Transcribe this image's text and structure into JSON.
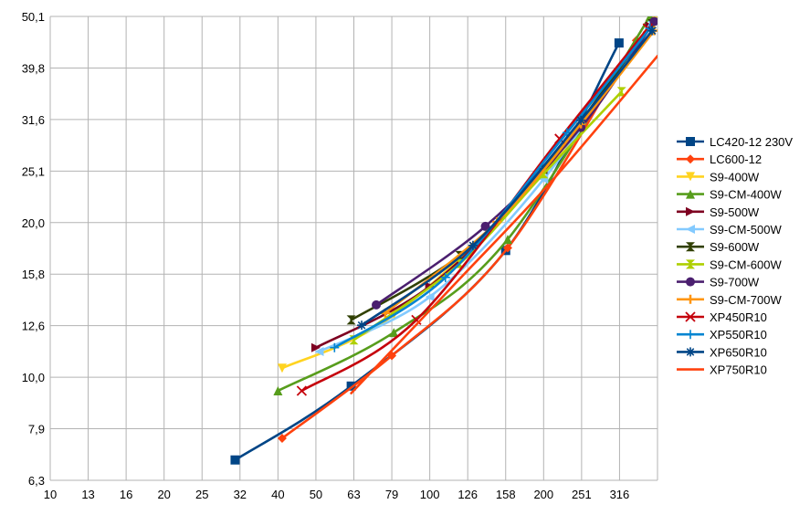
{
  "chart_data": {
    "type": "line",
    "x_scale": "log",
    "y_scale": "log",
    "xlim": [
      10,
      398
    ],
    "ylim": [
      6.3,
      50.1
    ],
    "x_ticks": [
      "10",
      "13",
      "16",
      "20",
      "25",
      "32",
      "40",
      "50",
      "63",
      "79",
      "100",
      "126",
      "158",
      "200",
      "251",
      "316"
    ],
    "y_ticks": [
      "50,1",
      "39,8",
      "31,6",
      "25,1",
      "20,0",
      "15,8",
      "12,6",
      "10,0",
      "7,9",
      "6,3"
    ],
    "grid": true,
    "legend_position": "right",
    "series": [
      {
        "name": "LC420-12 230V",
        "color": "#004586",
        "marker": "square",
        "points": [
          [
            31,
            6.9
          ],
          [
            62,
            9.6
          ],
          [
            158,
            17.6
          ],
          [
            315,
            44.5
          ]
        ]
      },
      {
        "name": "LC600-12",
        "color": "#ff420e",
        "marker": "diamond",
        "points": [
          [
            41,
            7.6
          ],
          [
            79,
            11.0
          ],
          [
            160,
            17.8
          ],
          [
            350,
            45.0
          ]
        ]
      },
      {
        "name": "S9-400W",
        "color": "#ffd320",
        "marker": "triangle-down",
        "points": [
          [
            41,
            10.4
          ],
          [
            80,
            13.2
          ],
          [
            200,
            24.9
          ],
          [
            390,
            49.5
          ]
        ]
      },
      {
        "name": "S9-CM-400W",
        "color": "#579d1c",
        "marker": "triangle-up",
        "points": [
          [
            40,
            9.4
          ],
          [
            80,
            12.2
          ],
          [
            160,
            18.5
          ],
          [
            380,
            50.1
          ]
        ]
      },
      {
        "name": "S9-500W",
        "color": "#7e0021",
        "marker": "triangle-right",
        "points": [
          [
            50,
            11.4
          ],
          [
            100,
            15.0
          ],
          [
            200,
            25.0
          ],
          [
            380,
            48.0
          ]
        ]
      },
      {
        "name": "S9-CM-500W",
        "color": "#83caff",
        "marker": "triangle-left",
        "points": [
          [
            51,
            11.2
          ],
          [
            100,
            14.3
          ],
          [
            200,
            24.2
          ],
          [
            385,
            49.0
          ]
        ]
      },
      {
        "name": "S9-600W",
        "color": "#314004",
        "marker": "bowtie",
        "points": [
          [
            62,
            12.9
          ],
          [
            120,
            17.2
          ],
          [
            200,
            25.3
          ],
          [
            385,
            48.5
          ]
        ]
      },
      {
        "name": "S9-CM-600W",
        "color": "#aecf00",
        "marker": "hourglass",
        "points": [
          [
            63,
            11.8
          ],
          [
            120,
            16.6
          ],
          [
            200,
            24.8
          ],
          [
            320,
            35.8
          ]
        ]
      },
      {
        "name": "S9-700W",
        "color": "#4b1f6f",
        "marker": "circle",
        "points": [
          [
            72,
            13.8
          ],
          [
            140,
            19.6
          ],
          [
            250,
            30.5
          ],
          [
            390,
            49.0
          ]
        ]
      },
      {
        "name": "S9-CM-700W",
        "color": "#ff950e",
        "marker": "plus",
        "points": [
          [
            76,
            13.3
          ],
          [
            150,
            20.0
          ],
          [
            250,
            31.0
          ],
          [
            390,
            47.0
          ]
        ]
      },
      {
        "name": "XP450R10",
        "color": "#c5000b",
        "marker": "x",
        "points": [
          [
            46,
            9.4
          ],
          [
            92,
            12.9
          ],
          [
            220,
            29.0
          ],
          [
            375,
            47.5
          ]
        ]
      },
      {
        "name": "XP550R10",
        "color": "#0084d1",
        "marker": "plus-thin",
        "points": [
          [
            56,
            11.4
          ],
          [
            110,
            15.6
          ],
          [
            230,
            29.8
          ],
          [
            380,
            47.5
          ]
        ]
      },
      {
        "name": "XP650R10",
        "color": "#004586",
        "marker": "star",
        "points": [
          [
            66,
            12.6
          ],
          [
            130,
            18.0
          ],
          [
            250,
            31.5
          ],
          [
            385,
            47.0
          ]
        ]
      },
      {
        "name": "XP750R10",
        "color": "#ff420e",
        "marker": "none",
        "points": [
          [
            62,
            9.3
          ],
          [
            120,
            15.5
          ],
          [
            210,
            24.0
          ],
          [
            398,
            42.0
          ]
        ]
      }
    ]
  }
}
